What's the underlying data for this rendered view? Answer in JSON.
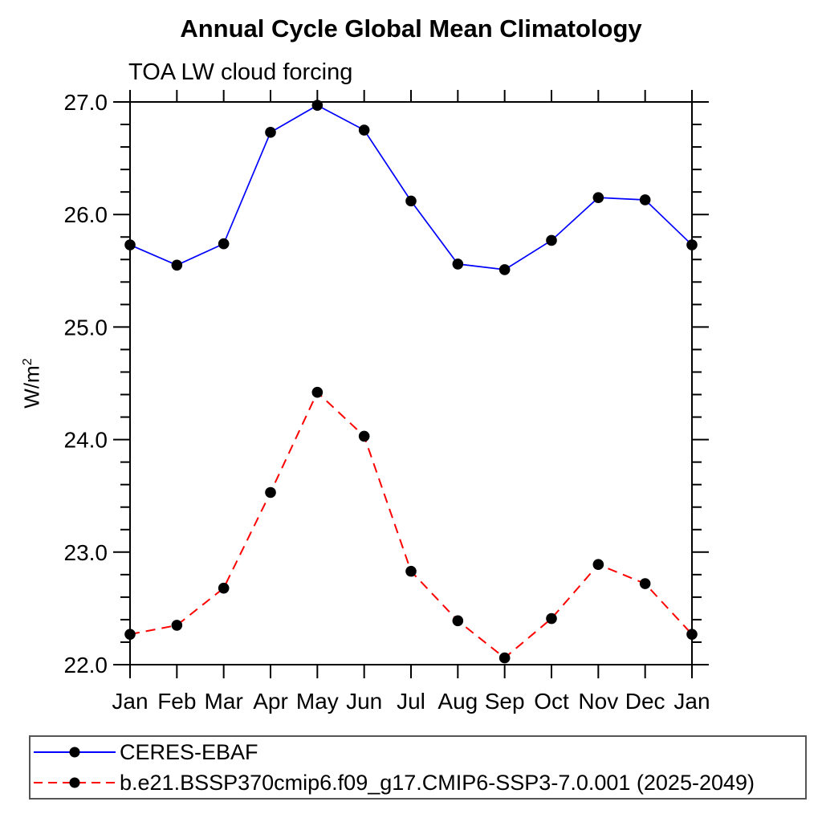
{
  "title": "Annual Cycle Global Mean Climatology",
  "subtitle": "TOA LW cloud forcing",
  "y_axis_label": {
    "base": "W/m",
    "exp": "2"
  },
  "chart_data": {
    "type": "line",
    "title": "Annual Cycle Global Mean Climatology",
    "subtitle": "TOA LW cloud forcing",
    "ylabel": "W/m^2",
    "x_categories": [
      "Jan",
      "Feb",
      "Mar",
      "Apr",
      "May",
      "Jun",
      "Jul",
      "Aug",
      "Sep",
      "Oct",
      "Nov",
      "Dec",
      "Jan"
    ],
    "ylim": [
      22.0,
      27.0
    ],
    "y_major_tick_labels": [
      "27.0",
      "26.0",
      "25.0",
      "24.0",
      "23.0",
      "22.0"
    ],
    "y_major_tick_values": [
      27.0,
      26.0,
      25.0,
      24.0,
      23.0,
      22.0
    ],
    "y_minor_step": 0.2,
    "grid": false,
    "legend_position": "bottom-left-box",
    "axis_color": "#000000",
    "series": [
      {
        "name": "CERES-EBAF",
        "color": "#0000ff",
        "line_style": "solid",
        "marker": "filled-circle",
        "marker_color": "#000000",
        "values": [
          25.73,
          25.55,
          25.74,
          26.73,
          26.97,
          26.75,
          26.12,
          25.56,
          25.51,
          25.77,
          26.15,
          26.13,
          25.73
        ]
      },
      {
        "name": "b.e21.BSSP370cmip6.f09_g17.CMIP6-SSP3-7.0.001 (2025-2049)",
        "color": "#ff0000",
        "line_style": "dashed",
        "marker": "filled-circle",
        "marker_color": "#000000",
        "values": [
          22.27,
          22.35,
          22.68,
          23.53,
          24.42,
          24.03,
          22.83,
          22.39,
          22.06,
          22.41,
          22.89,
          22.72,
          22.27
        ]
      }
    ]
  }
}
